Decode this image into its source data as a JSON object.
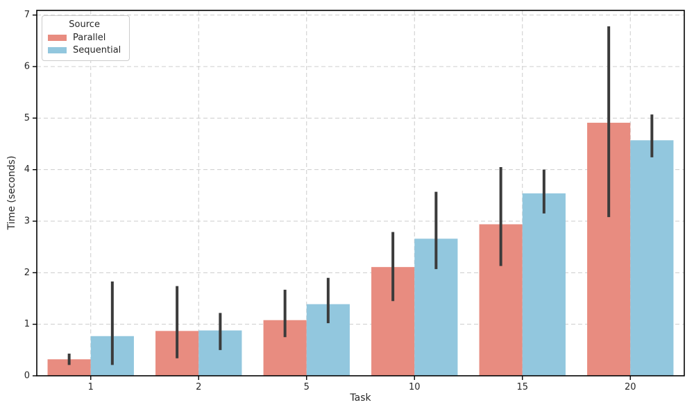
{
  "chart_data": {
    "type": "bar",
    "title": "",
    "xlabel": "Task",
    "ylabel": "Time (seconds)",
    "categories": [
      "1",
      "2",
      "5",
      "10",
      "15",
      "20"
    ],
    "series": [
      {
        "name": "Parallel",
        "color": "#E88C80",
        "values": [
          0.32,
          0.87,
          1.08,
          2.11,
          2.94,
          4.91
        ],
        "error_bars": [
          [
            0.21,
            0.43
          ],
          [
            0.34,
            1.74
          ],
          [
            0.75,
            1.67
          ],
          [
            1.45,
            2.79
          ],
          [
            2.13,
            4.05
          ],
          [
            3.08,
            6.78
          ]
        ]
      },
      {
        "name": "Sequential",
        "color": "#92C7DE",
        "values": [
          0.77,
          0.88,
          1.39,
          2.66,
          3.54,
          4.57
        ],
        "error_bars": [
          [
            0.21,
            1.83
          ],
          [
            0.5,
            1.22
          ],
          [
            1.02,
            1.9
          ],
          [
            2.07,
            3.57
          ],
          [
            3.15,
            4.0
          ],
          [
            4.24,
            5.07
          ]
        ]
      }
    ],
    "ylim": [
      0,
      7.09
    ],
    "yticks": [
      0,
      1,
      2,
      3,
      4,
      5,
      6,
      7
    ],
    "legend": {
      "title": "Source",
      "position": "upper-left"
    },
    "grid": {
      "show": true,
      "color": "#cccccc",
      "style": "dashed"
    },
    "error_bar_color": "#3B3B3B",
    "bar_group_width_fraction": 0.8,
    "tick_label_color": "#262626",
    "spine_color": "#000000"
  }
}
